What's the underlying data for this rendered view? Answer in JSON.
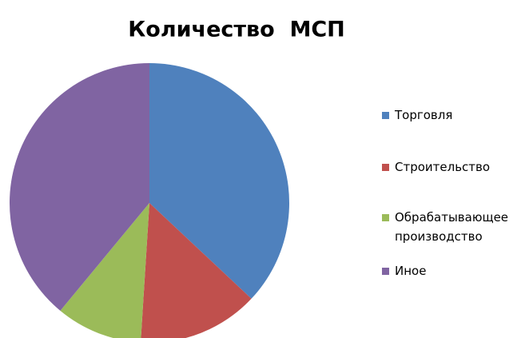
{
  "chart_data": {
    "type": "pie",
    "title": "Количество  МСП",
    "categories": [
      "Торговля",
      "Строительство",
      "Обрабатывающее производство",
      "Иное"
    ],
    "values": [
      37,
      14,
      10,
      39
    ],
    "colors": [
      "#4f81bd",
      "#c0504d",
      "#9bbb59",
      "#8064a2"
    ],
    "legend": "right"
  }
}
